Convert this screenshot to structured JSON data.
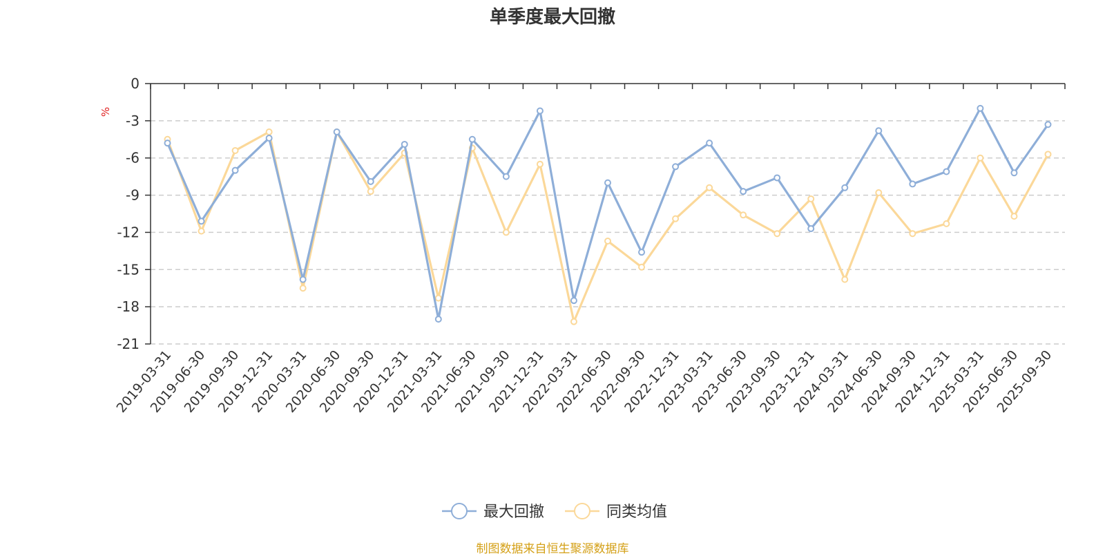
{
  "chart_data": {
    "type": "line",
    "title": "单季度最大回撤",
    "ylabel": "%",
    "xlabel": "",
    "ylim": [
      -21,
      0
    ],
    "yticks": [
      0,
      -3,
      -6,
      -9,
      -12,
      -15,
      -18,
      -21
    ],
    "grid": true,
    "legend_position": "bottom-center",
    "categories": [
      "2019-03-31",
      "2019-06-30",
      "2019-09-30",
      "2019-12-31",
      "2020-03-31",
      "2020-06-30",
      "2020-09-30",
      "2020-12-31",
      "2021-03-31",
      "2021-06-30",
      "2021-09-30",
      "2021-12-31",
      "2022-03-31",
      "2022-06-30",
      "2022-09-30",
      "2022-12-31",
      "2023-03-31",
      "2023-06-30",
      "2023-09-30",
      "2023-12-31",
      "2024-03-31",
      "2024-06-30",
      "2024-09-30",
      "2024-12-31",
      "2025-03-31",
      "2025-06-30",
      "2025-09-30"
    ],
    "series": [
      {
        "name": "最大回撤",
        "color": "#8eaed8",
        "values": [
          -4.8,
          -11.1,
          -7.0,
          -4.4,
          -15.8,
          -3.9,
          -7.9,
          -4.9,
          -19.0,
          -4.5,
          -7.5,
          -2.2,
          -17.5,
          -8.0,
          -13.6,
          -6.7,
          -4.8,
          -8.7,
          -7.6,
          -11.7,
          -8.4,
          -3.8,
          -8.1,
          -7.1,
          -2.0,
          -7.2,
          -3.3
        ]
      },
      {
        "name": "同类均值",
        "color": "#fbd899",
        "values": [
          -4.5,
          -11.9,
          -5.4,
          -3.9,
          -16.5,
          -3.9,
          -8.7,
          -5.6,
          -17.3,
          -5.2,
          -12.0,
          -6.5,
          -19.2,
          -12.7,
          -14.8,
          -10.9,
          -8.4,
          -10.6,
          -12.1,
          -9.3,
          -15.8,
          -8.8,
          -12.1,
          -11.3,
          -6.0,
          -10.7,
          -5.7
        ]
      }
    ]
  },
  "source_note": "制图数据来自恒生聚源数据库"
}
